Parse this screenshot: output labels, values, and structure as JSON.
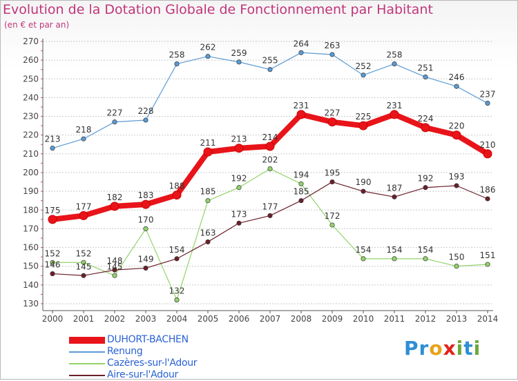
{
  "title": "Evolution de la Dotation Globale de Fonctionnement par Habitant",
  "subtitle": "(en € et par an)",
  "colors": {
    "title": "#c0357a",
    "axis": "#555555",
    "grid": "#c9c9c9",
    "legend_text": "#2a62d4"
  },
  "logo": {
    "text": "Proxiti",
    "letters": [
      {
        "ch": "P",
        "color": "#2e8fd6"
      },
      {
        "ch": "r",
        "color": "#2e8fd6"
      },
      {
        "ch": "o",
        "color": "#e8a21a"
      },
      {
        "ch": "x",
        "color": "#e2231a"
      },
      {
        "ch": "i",
        "color": "#6aa93a"
      },
      {
        "ch": "t",
        "color": "#2e8fd6"
      },
      {
        "ch": "i",
        "color": "#6aa93a"
      }
    ]
  },
  "chart_data": {
    "type": "line",
    "title": "Evolution de la Dotation Globale de Fonctionnement par Habitant",
    "subtitle": "(en € et par an)",
    "x": [
      "2000",
      "2001",
      "2002",
      "2003",
      "2004",
      "2005",
      "2006",
      "2007",
      "2008",
      "2009",
      "2010",
      "2011",
      "2012",
      "2013",
      "2014"
    ],
    "ylim": [
      130,
      270
    ],
    "yticks": [
      130,
      140,
      150,
      160,
      170,
      180,
      190,
      200,
      210,
      220,
      230,
      240,
      250,
      260,
      270
    ],
    "grid": "horizontal",
    "legend_position": "bottom-left",
    "series": [
      {
        "name": "DUHORT-BACHEN",
        "color": "#e8141a",
        "bold": true,
        "values": [
          175,
          177,
          182,
          183,
          188,
          211,
          213,
          214,
          231,
          227,
          225,
          231,
          224,
          220,
          210
        ]
      },
      {
        "name": "Renung",
        "color": "#5b9bd5",
        "bold": false,
        "values": [
          213,
          218,
          227,
          228,
          258,
          262,
          259,
          255,
          264,
          263,
          252,
          258,
          251,
          246,
          237
        ]
      },
      {
        "name": "Cazères-sur-l'Adour",
        "color": "#93d36a",
        "bold": false,
        "values": [
          152,
          152,
          145,
          170,
          132,
          185,
          192,
          202,
          194,
          172,
          154,
          154,
          154,
          150,
          151
        ]
      },
      {
        "name": "Aire-sur-l'Adour",
        "color": "#6b1f2a",
        "bold": false,
        "values": [
          146,
          145,
          148,
          149,
          154,
          163,
          173,
          177,
          185,
          195,
          190,
          187,
          192,
          193,
          186
        ]
      }
    ]
  }
}
